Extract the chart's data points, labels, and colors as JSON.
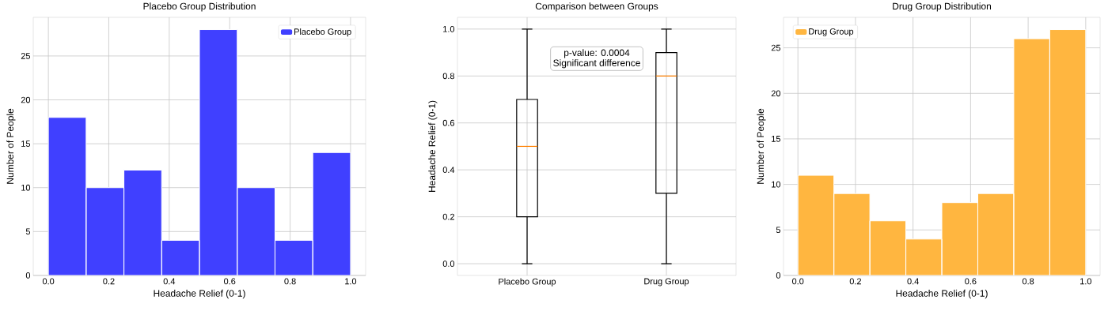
{
  "chart_data": [
    {
      "type": "histogram",
      "title": "Placebo Group Distribution",
      "xlabel": "Headache Relief (0-1)",
      "ylabel": "Number of People",
      "bins": [
        0,
        0.125,
        0.25,
        0.375,
        0.5,
        0.625,
        0.75,
        0.875,
        1
      ],
      "series": [
        {
          "name": "Placebo Group",
          "color": "#4040ff",
          "values": [
            18,
            10,
            12,
            4,
            28,
            10,
            4,
            14
          ]
        }
      ],
      "xlim": [
        -0.05,
        1.05
      ],
      "ylim": [
        0,
        29.4
      ],
      "xticks": [
        {
          "value": 0,
          "label": "0.0"
        },
        {
          "value": 0.2,
          "label": "0.2"
        },
        {
          "value": 0.4,
          "label": "0.4"
        },
        {
          "value": 0.6,
          "label": "0.6"
        },
        {
          "value": 0.8,
          "label": "0.8"
        },
        {
          "value": 1,
          "label": "1.0"
        }
      ],
      "yticks": [
        0,
        5,
        10,
        15,
        20,
        25
      ],
      "grid": true,
      "legend": "top right"
    },
    {
      "type": "box",
      "title": "Comparison between Groups",
      "ylabel": "Headache Relief (0-1)",
      "categories": [
        "Placebo Group",
        "Drug Group"
      ],
      "boxes": [
        {
          "low": 0,
          "q1": 0.2,
          "median": 0.5,
          "q3": 0.7,
          "high": 1
        },
        {
          "low": 0,
          "q1": 0.3,
          "median": 0.8,
          "q3": 0.9,
          "high": 1
        }
      ],
      "ylim": [
        -0.05,
        1.05
      ],
      "yticks": [
        {
          "value": 0,
          "label": "0.0"
        },
        {
          "value": 0.2,
          "label": "0.2"
        },
        {
          "value": 0.4,
          "label": "0.4"
        },
        {
          "value": 0.6,
          "label": "0.6"
        },
        {
          "value": 0.8,
          "label": "0.8"
        },
        {
          "value": 1,
          "label": "1.0"
        }
      ],
      "annotations": [
        "p-value: 0.0004",
        "Significant difference"
      ],
      "grid": true
    },
    {
      "type": "histogram",
      "title": "Drug Group Distribution",
      "xlabel": "Headache Relief (0-1)",
      "ylabel": "Number of People",
      "bins": [
        0,
        0.125,
        0.25,
        0.375,
        0.5,
        0.625,
        0.75,
        0.875,
        1
      ],
      "series": [
        {
          "name": "Drug Group",
          "color": "#ffb640",
          "values": [
            11,
            9,
            6,
            4,
            8,
            9,
            26,
            27
          ]
        }
      ],
      "xlim": [
        -0.05,
        1.05
      ],
      "ylim": [
        0,
        28.35
      ],
      "xticks": [
        {
          "value": 0,
          "label": "0.0"
        },
        {
          "value": 0.2,
          "label": "0.2"
        },
        {
          "value": 0.4,
          "label": "0.4"
        },
        {
          "value": 0.6,
          "label": "0.6"
        },
        {
          "value": 0.8,
          "label": "0.8"
        },
        {
          "value": 1,
          "label": "1.0"
        }
      ],
      "yticks": [
        0,
        5,
        10,
        15,
        20,
        25
      ],
      "grid": true,
      "legend": "top left"
    }
  ]
}
